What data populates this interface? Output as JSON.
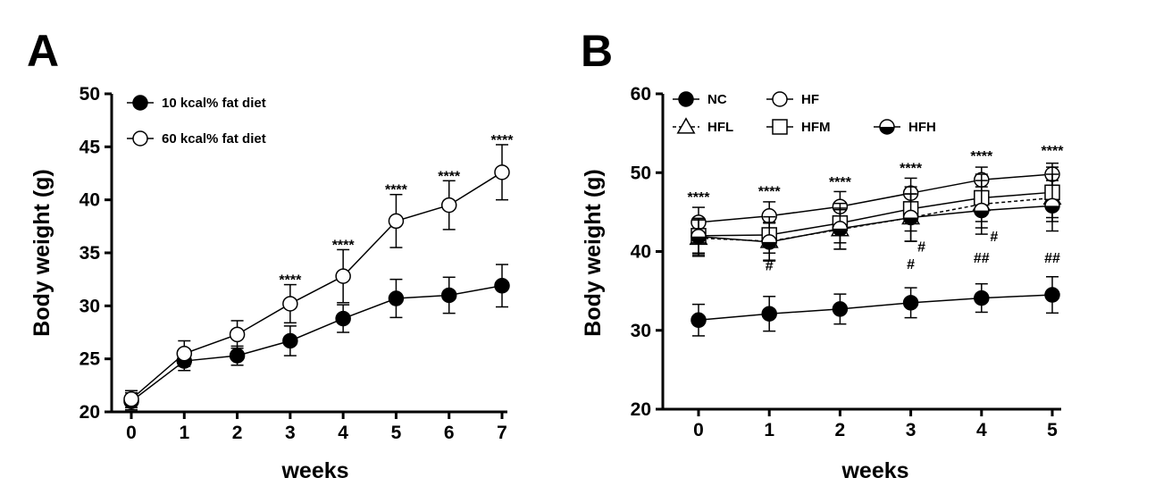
{
  "colors": {
    "ink": "#000000",
    "fill_open": "#ffffff",
    "fill_closed": "#000000"
  },
  "chart_data": [
    {
      "type": "line",
      "panel_label": "A",
      "xlabel": "weeks",
      "ylabel": "Body weight (g)",
      "xlim": [
        0,
        7
      ],
      "ylim": [
        20,
        50
      ],
      "x_ticks": [
        "0",
        "1",
        "2",
        "3",
        "4",
        "5",
        "6",
        "7"
      ],
      "y_ticks": [
        "20",
        "25",
        "30",
        "35",
        "40",
        "45",
        "50"
      ],
      "x": [
        0,
        1,
        2,
        3,
        4,
        5,
        6,
        7
      ],
      "legend_position": "top-left",
      "series": [
        {
          "name": "10 kcal% fat diet",
          "marker": "filled-circle",
          "line": "solid",
          "values": [
            21.0,
            24.8,
            25.3,
            26.7,
            28.8,
            30.7,
            31.0,
            31.9
          ],
          "errors": [
            0.8,
            0.9,
            0.9,
            1.4,
            1.3,
            1.8,
            1.7,
            2.0
          ]
        },
        {
          "name": "60 kcal% fat diet",
          "marker": "open-circle",
          "line": "solid",
          "values": [
            21.2,
            25.5,
            27.3,
            30.2,
            32.8,
            38.0,
            39.5,
            42.6
          ],
          "errors": [
            0.8,
            1.2,
            1.3,
            1.8,
            2.5,
            2.5,
            2.3,
            2.6
          ]
        }
      ],
      "annotations": [
        {
          "x": 3,
          "y": 32.0,
          "text": "****"
        },
        {
          "x": 4,
          "y": 35.3,
          "text": "****"
        },
        {
          "x": 5,
          "y": 40.5,
          "text": "****"
        },
        {
          "x": 6,
          "y": 41.8,
          "text": "****"
        },
        {
          "x": 7,
          "y": 45.2,
          "text": "****"
        }
      ]
    },
    {
      "type": "line",
      "panel_label": "B",
      "xlabel": "weeks",
      "ylabel": "Body weight (g)",
      "xlim": [
        0,
        5
      ],
      "ylim": [
        20,
        60
      ],
      "x_ticks": [
        "0",
        "1",
        "2",
        "3",
        "4",
        "5"
      ],
      "y_ticks": [
        "20",
        "30",
        "40",
        "50",
        "60"
      ],
      "x": [
        0,
        1,
        2,
        3,
        4,
        5
      ],
      "legend_position": "top",
      "series": [
        {
          "name": "NC",
          "marker": "filled-circle",
          "line": "solid",
          "values": [
            31.3,
            32.1,
            32.7,
            33.5,
            34.1,
            34.5
          ],
          "errors": [
            2.0,
            2.2,
            1.9,
            1.9,
            1.8,
            2.3
          ]
        },
        {
          "name": "HF",
          "marker": "open-circle",
          "line": "solid",
          "values": [
            43.7,
            44.5,
            45.7,
            47.4,
            49.1,
            49.8
          ],
          "errors": [
            1.9,
            1.8,
            1.9,
            1.9,
            1.6,
            1.4
          ]
        },
        {
          "name": "HFL",
          "marker": "open-triangle",
          "line": "dashed",
          "values": [
            41.7,
            41.3,
            42.8,
            44.3,
            46.0,
            46.8
          ],
          "errors": [
            2.3,
            2.4,
            2.5,
            3.0,
            3.0,
            3.0
          ]
        },
        {
          "name": "HFM",
          "marker": "open-square",
          "line": "solid",
          "values": [
            42.0,
            42.1,
            43.6,
            45.4,
            46.8,
            47.5
          ],
          "errors": [
            2.2,
            2.3,
            2.5,
            2.8,
            3.0,
            3.2
          ]
        },
        {
          "name": "HFH",
          "marker": "half-filled-circle",
          "line": "solid",
          "values": [
            41.9,
            41.2,
            42.9,
            44.3,
            45.2,
            45.8
          ],
          "errors": [
            2.3,
            2.4,
            2.6,
            3.0,
            3.0,
            3.2
          ]
        }
      ],
      "annotations": [
        {
          "x": 0,
          "y": 46.3,
          "text": "****"
        },
        {
          "x": 1,
          "y": 47.0,
          "text": "****"
        },
        {
          "x": 2,
          "y": 48.2,
          "text": "****"
        },
        {
          "x": 3,
          "y": 50.0,
          "text": "****"
        },
        {
          "x": 4,
          "y": 51.5,
          "text": "****"
        },
        {
          "x": 5,
          "y": 52.2,
          "text": "****"
        },
        {
          "x": 1,
          "y": 37.6,
          "text": "#"
        },
        {
          "x": 3,
          "y": 40.0,
          "dx": 12,
          "text": "#"
        },
        {
          "x": 3,
          "y": 37.8,
          "text": "#"
        },
        {
          "x": 4,
          "y": 41.3,
          "dx": 14,
          "text": "#"
        },
        {
          "x": 4,
          "y": 38.6,
          "text": "##"
        },
        {
          "x": 5,
          "y": 38.6,
          "text": "##"
        }
      ]
    }
  ]
}
